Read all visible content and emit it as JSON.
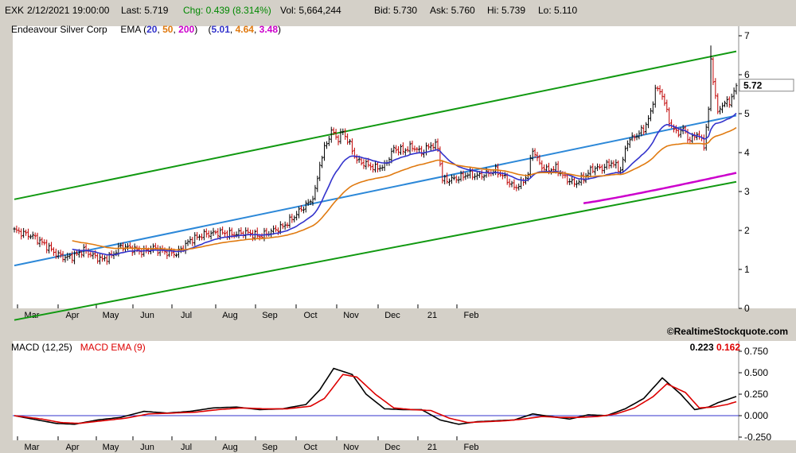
{
  "quote": {
    "symbol": "EXK",
    "datetime": "2/12/2021 19:00:00",
    "last": "Last: 5.719",
    "change": "Chg: 0.439 (8.314%)",
    "volume": "Vol: 5,664,244",
    "bid": "Bid: 5.730",
    "ask": "Ask: 5.760",
    "high": "Hi: 5.739",
    "low": "Lo: 5.110"
  },
  "legend": {
    "company": "Endeavour Silver Corp",
    "ema_label": "EMA (",
    "ema20_period": "20",
    "ema50_period": "50",
    "ema200_period": "200",
    "close_paren": ")",
    "open_paren": "(",
    "ema20_value": "5.01",
    "ema50_value": "4.64",
    "ema200_value": "3.48",
    "comma": ","
  },
  "last_price_label": "5.72",
  "copyright": "©RealtimeStockquote.com",
  "macd_legend": {
    "macd": "MACD (12,25)",
    "signal": "MACD EMA (9)",
    "macd_value": "0.223",
    "signal_value": "0.162"
  },
  "colors": {
    "background": "#ffffff",
    "frame": "#d4d0c8",
    "candle_up": "#000000",
    "candle_down": "#c00000",
    "ema20": "#3333cc",
    "ema50": "#e07a10",
    "ema200": "#cc00cc",
    "channel": "#119911",
    "trendline": "#2c88d8",
    "macd": "#000000",
    "macd_signal": "#dd0000",
    "zero_line": "#3333cc"
  },
  "chart_data": [
    {
      "type": "candlestick",
      "title": "Endeavour Silver Corp",
      "x_tick_labels": [
        "Mar",
        "Apr",
        "May",
        "Jun",
        "Jul",
        "Aug",
        "Sep",
        "Oct",
        "Nov",
        "Dec",
        "21",
        "Feb"
      ],
      "y_ticks": [
        0,
        1,
        2,
        3,
        4,
        5,
        6,
        7
      ],
      "ylim": [
        0,
        7
      ],
      "price_close_keypoints": [
        [
          0,
          2.0
        ],
        [
          8,
          1.85
        ],
        [
          14,
          1.6
        ],
        [
          18,
          1.4
        ],
        [
          22,
          1.3
        ],
        [
          26,
          1.35
        ],
        [
          30,
          1.5
        ],
        [
          34,
          1.35
        ],
        [
          38,
          1.25
        ],
        [
          42,
          1.35
        ],
        [
          46,
          1.6
        ],
        [
          50,
          1.55
        ],
        [
          55,
          1.45
        ],
        [
          60,
          1.55
        ],
        [
          65,
          1.45
        ],
        [
          70,
          1.4
        ],
        [
          76,
          1.75
        ],
        [
          82,
          1.9
        ],
        [
          88,
          1.95
        ],
        [
          94,
          1.9
        ],
        [
          100,
          1.95
        ],
        [
          106,
          1.85
        ],
        [
          110,
          1.95
        ],
        [
          116,
          2.1
        ],
        [
          120,
          2.3
        ],
        [
          124,
          2.55
        ],
        [
          128,
          2.75
        ],
        [
          130,
          3.0
        ],
        [
          132,
          3.7
        ],
        [
          134,
          4.1
        ],
        [
          137,
          4.55
        ],
        [
          140,
          4.35
        ],
        [
          142,
          4.55
        ],
        [
          145,
          4.2
        ],
        [
          148,
          3.8
        ],
        [
          152,
          3.7
        ],
        [
          156,
          3.6
        ],
        [
          160,
          3.65
        ],
        [
          164,
          4.1
        ],
        [
          168,
          4.05
        ],
        [
          172,
          4.15
        ],
        [
          176,
          4.0
        ],
        [
          180,
          4.2
        ],
        [
          183,
          4.15
        ],
        [
          185,
          3.3
        ],
        [
          188,
          3.3
        ],
        [
          192,
          3.35
        ],
        [
          196,
          3.45
        ],
        [
          200,
          3.4
        ],
        [
          204,
          3.45
        ],
        [
          208,
          3.55
        ],
        [
          212,
          3.35
        ],
        [
          216,
          3.1
        ],
        [
          219,
          3.2
        ],
        [
          222,
          3.45
        ],
        [
          224,
          4.1
        ],
        [
          227,
          3.7
        ],
        [
          230,
          3.55
        ],
        [
          234,
          3.6
        ],
        [
          238,
          3.35
        ],
        [
          242,
          3.2
        ],
        [
          246,
          3.35
        ],
        [
          250,
          3.6
        ],
        [
          254,
          3.6
        ],
        [
          258,
          3.75
        ],
        [
          262,
          3.55
        ],
        [
          265,
          4.3
        ],
        [
          268,
          4.4
        ],
        [
          272,
          4.6
        ],
        [
          275,
          5.0
        ],
        [
          277,
          5.65
        ],
        [
          280,
          5.5
        ],
        [
          283,
          4.8
        ],
        [
          286,
          4.5
        ],
        [
          289,
          4.6
        ],
        [
          292,
          4.3
        ],
        [
          295,
          4.5
        ],
        [
          298,
          4.2
        ],
        [
          300,
          5.1
        ],
        [
          301,
          6.35
        ],
        [
          302,
          5.9
        ],
        [
          304,
          5.0
        ],
        [
          306,
          5.25
        ],
        [
          309,
          5.3
        ],
        [
          312,
          5.72
        ]
      ],
      "candles_approx_count": 313,
      "ema": [
        {
          "name": "EMA 20",
          "period": 20,
          "last": 5.01
        },
        {
          "name": "EMA 50",
          "period": 50,
          "last": 4.64
        },
        {
          "name": "EMA 200",
          "period": 200,
          "last": 3.48,
          "start_index": 246
        }
      ],
      "channel_lines": [
        {
          "role": "upper",
          "start": [
            0,
            2.8
          ],
          "end": [
            312,
            6.6
          ]
        },
        {
          "role": "middle",
          "start": [
            0,
            1.1
          ],
          "end": [
            312,
            4.95
          ]
        },
        {
          "role": "lower",
          "start": [
            0,
            -0.3
          ],
          "end": [
            312,
            3.25
          ]
        }
      ],
      "last_value": 5.72
    },
    {
      "type": "line",
      "title": "MACD (12,25)",
      "x_tick_labels": [
        "Mar",
        "Apr",
        "May",
        "Jun",
        "Jul",
        "Aug",
        "Sep",
        "Oct",
        "Nov",
        "Dec",
        "21",
        "Feb"
      ],
      "y_ticks": [
        0.75,
        0.5,
        0.25,
        0.0,
        -0.25
      ],
      "y_tick_labels": [
        "0.750",
        "0.500",
        "0.250",
        "0.000",
        "-0.250"
      ],
      "ylim": [
        -0.3,
        0.8
      ],
      "series": [
        {
          "name": "MACD (12,25)",
          "last": 0.223,
          "keypoints": [
            [
              0,
              0.0
            ],
            [
              10,
              -0.05
            ],
            [
              18,
              -0.09
            ],
            [
              26,
              -0.1
            ],
            [
              36,
              -0.05
            ],
            [
              46,
              -0.02
            ],
            [
              56,
              0.05
            ],
            [
              66,
              0.03
            ],
            [
              76,
              0.05
            ],
            [
              86,
              0.09
            ],
            [
              96,
              0.1
            ],
            [
              106,
              0.07
            ],
            [
              116,
              0.08
            ],
            [
              126,
              0.13
            ],
            [
              132,
              0.3
            ],
            [
              138,
              0.55
            ],
            [
              146,
              0.48
            ],
            [
              152,
              0.25
            ],
            [
              160,
              0.08
            ],
            [
              168,
              0.07
            ],
            [
              176,
              0.07
            ],
            [
              184,
              -0.05
            ],
            [
              192,
              -0.1
            ],
            [
              200,
              -0.07
            ],
            [
              208,
              -0.06
            ],
            [
              216,
              -0.05
            ],
            [
              224,
              0.02
            ],
            [
              232,
              -0.01
            ],
            [
              240,
              -0.04
            ],
            [
              248,
              0.01
            ],
            [
              256,
              0.0
            ],
            [
              264,
              0.08
            ],
            [
              272,
              0.2
            ],
            [
              280,
              0.44
            ],
            [
              288,
              0.25
            ],
            [
              294,
              0.07
            ],
            [
              300,
              0.1
            ],
            [
              304,
              0.15
            ],
            [
              312,
              0.223
            ]
          ]
        },
        {
          "name": "MACD EMA (9)",
          "last": 0.162,
          "keypoints": [
            [
              0,
              0.0
            ],
            [
              12,
              -0.04
            ],
            [
              20,
              -0.08
            ],
            [
              28,
              -0.09
            ],
            [
              38,
              -0.06
            ],
            [
              48,
              -0.03
            ],
            [
              58,
              0.02
            ],
            [
              68,
              0.03
            ],
            [
              78,
              0.04
            ],
            [
              88,
              0.07
            ],
            [
              98,
              0.09
            ],
            [
              108,
              0.08
            ],
            [
              118,
              0.08
            ],
            [
              128,
              0.11
            ],
            [
              134,
              0.2
            ],
            [
              142,
              0.48
            ],
            [
              148,
              0.45
            ],
            [
              156,
              0.25
            ],
            [
              164,
              0.09
            ],
            [
              172,
              0.07
            ],
            [
              180,
              0.06
            ],
            [
              188,
              -0.03
            ],
            [
              196,
              -0.08
            ],
            [
              204,
              -0.07
            ],
            [
              212,
              -0.06
            ],
            [
              220,
              -0.04
            ],
            [
              228,
              -0.01
            ],
            [
              236,
              -0.02
            ],
            [
              244,
              -0.02
            ],
            [
              252,
              -0.01
            ],
            [
              260,
              0.02
            ],
            [
              268,
              0.09
            ],
            [
              276,
              0.22
            ],
            [
              282,
              0.37
            ],
            [
              290,
              0.27
            ],
            [
              296,
              0.09
            ],
            [
              302,
              0.1
            ],
            [
              308,
              0.13
            ],
            [
              312,
              0.162
            ]
          ]
        }
      ]
    }
  ]
}
